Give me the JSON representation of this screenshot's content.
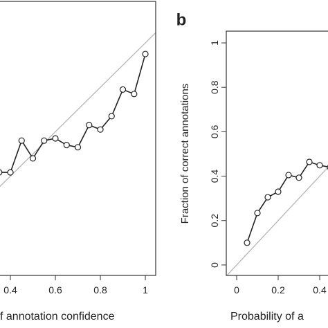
{
  "chart_data": [
    {
      "type": "line",
      "xlabel": "f annotation confidence",
      "x": [
        0.35,
        0.4,
        0.45,
        0.5,
        0.55,
        0.6,
        0.65,
        0.7,
        0.75,
        0.8,
        0.85,
        0.9,
        0.95,
        1.0
      ],
      "series": [
        {
          "color": "#222222",
          "values": [
            0.417,
            0.417,
            0.56,
            0.48,
            0.56,
            0.57,
            0.54,
            0.53,
            0.63,
            0.61,
            0.67,
            0.79,
            0.77,
            0.95
          ]
        }
      ],
      "xlim": [
        -0.04,
        1.046
      ],
      "ylim": [
        -0.047,
        1.187
      ],
      "xticks": [
        0.4,
        0.6,
        0.8,
        1.0
      ]
    },
    {
      "type": "line",
      "title": "b",
      "xlabel": "Probability of a",
      "ylabel": "Fraction of correct annotations",
      "x": [
        0.05,
        0.1,
        0.15,
        0.2,
        0.25,
        0.3,
        0.35,
        0.4,
        0.45
      ],
      "series": [
        {
          "color": "#222222",
          "values": [
            0.1,
            0.234,
            0.305,
            0.33,
            0.405,
            0.393,
            0.464,
            0.449,
            0.44
          ]
        }
      ],
      "xlim": [
        -0.05,
        0.48
      ],
      "ylim": [
        -0.047,
        1.053
      ],
      "xticks": [
        0.0,
        0.2,
        0.4
      ],
      "yticks": [
        0.0,
        0.2,
        0.4,
        0.6,
        0.8,
        1.0
      ]
    }
  ]
}
